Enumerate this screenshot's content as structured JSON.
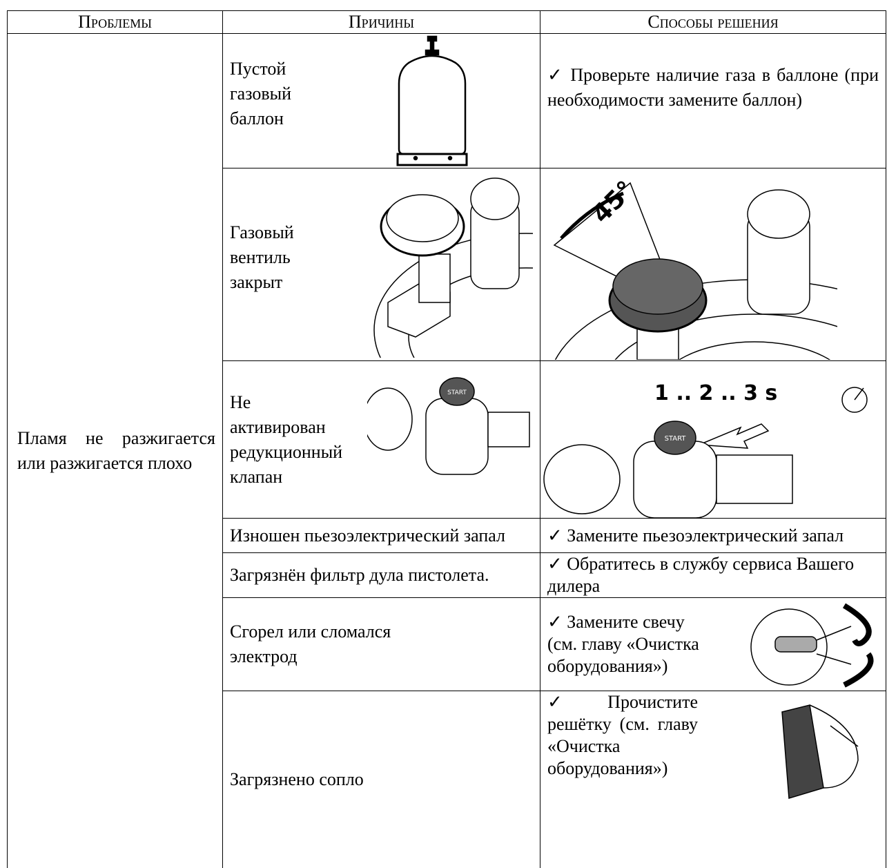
{
  "table": {
    "headers": [
      "Проблемы",
      "Причины",
      "Способы решения"
    ],
    "problem": "Пламя не разжигается или разжигается плохо",
    "rows": [
      {
        "cause": "Пустой газовый баллон",
        "solution": "✓ Проверьте наличие газа в баллоне (при необходимости замените баллон)"
      },
      {
        "cause": "Газовый вентиль закрыт",
        "solution_image_text": "45°"
      },
      {
        "cause": "Не активирован редукционный клапан",
        "cause_image_text": "START",
        "solution_image_text": "1 .. 2 .. 3 s",
        "solution_button_text": "START"
      },
      {
        "cause": "Изношен пьезоэлектрический запал",
        "solution": "✓ Замените пьезоэлектрический запал"
      },
      {
        "cause": "Загрязнён фильтр дула пистолета.",
        "solution": "✓ Обратитесь в службу сервиса Вашего дилера"
      },
      {
        "cause": "Сгорел или сломался электрод",
        "solution": "✓ Замените свечу (см. главу «Очистка оборудования»)"
      },
      {
        "cause": "Загрязнено сопло",
        "solution": "✓ Прочистите решётку (см. главу «Очистка оборудования»)"
      }
    ]
  }
}
